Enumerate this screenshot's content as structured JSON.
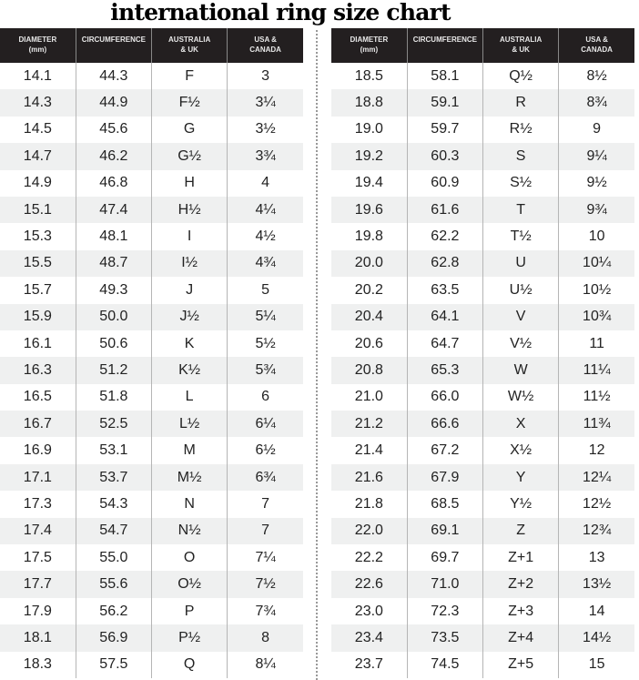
{
  "title": "international ring size chart",
  "headers": [
    [
      "DIAMETER",
      "(mm)"
    ],
    [
      "CIRCUMFERENCE",
      ""
    ],
    [
      "AUSTRALIA",
      "& UK"
    ],
    [
      "USA &",
      "CANADA"
    ]
  ],
  "left_rows": [
    [
      "14.1",
      "44.3",
      "F",
      "3"
    ],
    [
      "14.3",
      "44.9",
      "F½",
      "3¼"
    ],
    [
      "14.5",
      "45.6",
      "G",
      "3½"
    ],
    [
      "14.7",
      "46.2",
      "G½",
      "3¾"
    ],
    [
      "14.9",
      "46.8",
      "H",
      "4"
    ],
    [
      "15.1",
      "47.4",
      "H½",
      "4¼"
    ],
    [
      "15.3",
      "48.1",
      "I",
      "4½"
    ],
    [
      "15.5",
      "48.7",
      "I½",
      "4¾"
    ],
    [
      "15.7",
      "49.3",
      "J",
      "5"
    ],
    [
      "15.9",
      "50.0",
      "J½",
      "5¼"
    ],
    [
      "16.1",
      "50.6",
      "K",
      "5½"
    ],
    [
      "16.3",
      "51.2",
      "K½",
      "5¾"
    ],
    [
      "16.5",
      "51.8",
      "L",
      "6"
    ],
    [
      "16.7",
      "52.5",
      "L½",
      "6¼"
    ],
    [
      "16.9",
      "53.1",
      "M",
      "6½"
    ],
    [
      "17.1",
      "53.7",
      "M½",
      "6¾"
    ],
    [
      "17.3",
      "54.3",
      "N",
      "7"
    ],
    [
      "17.4",
      "54.7",
      "N½",
      "7"
    ],
    [
      "17.5",
      "55.0",
      "O",
      "7¼"
    ],
    [
      "17.7",
      "55.6",
      "O½",
      "7½"
    ],
    [
      "17.9",
      "56.2",
      "P",
      "7¾"
    ],
    [
      "18.1",
      "56.9",
      "P½",
      "8"
    ],
    [
      "18.3",
      "57.5",
      "Q",
      "8¼"
    ]
  ],
  "right_rows": [
    [
      "18.5",
      "58.1",
      "Q½",
      "8½"
    ],
    [
      "18.8",
      "59.1",
      "R",
      "8¾"
    ],
    [
      "19.0",
      "59.7",
      "R½",
      "9"
    ],
    [
      "19.2",
      "60.3",
      "S",
      "9¼"
    ],
    [
      "19.4",
      "60.9",
      "S½",
      "9½"
    ],
    [
      "19.6",
      "61.6",
      "T",
      "9¾"
    ],
    [
      "19.8",
      "62.2",
      "T½",
      "10"
    ],
    [
      "20.0",
      "62.8",
      "U",
      "10¼"
    ],
    [
      "20.2",
      "63.5",
      "U½",
      "10½"
    ],
    [
      "20.4",
      "64.1",
      "V",
      "10¾"
    ],
    [
      "20.6",
      "64.7",
      "V½",
      "11"
    ],
    [
      "20.8",
      "65.3",
      "W",
      "11¼"
    ],
    [
      "21.0",
      "66.0",
      "W½",
      "11½"
    ],
    [
      "21.2",
      "66.6",
      "X",
      "11¾"
    ],
    [
      "21.4",
      "67.2",
      "X½",
      "12"
    ],
    [
      "21.6",
      "67.9",
      "Y",
      "12¼"
    ],
    [
      "21.8",
      "68.5",
      "Y½",
      "12½"
    ],
    [
      "22.0",
      "69.1",
      "Z",
      "12¾"
    ],
    [
      "22.2",
      "69.7",
      "Z+1",
      "13"
    ],
    [
      "22.6",
      "71.0",
      "Z+2",
      "13½"
    ],
    [
      "23.0",
      "72.3",
      "Z+3",
      "14"
    ],
    [
      "23.4",
      "73.5",
      "Z+4",
      "14½"
    ],
    [
      "23.7",
      "74.5",
      "Z+5",
      "15"
    ]
  ]
}
